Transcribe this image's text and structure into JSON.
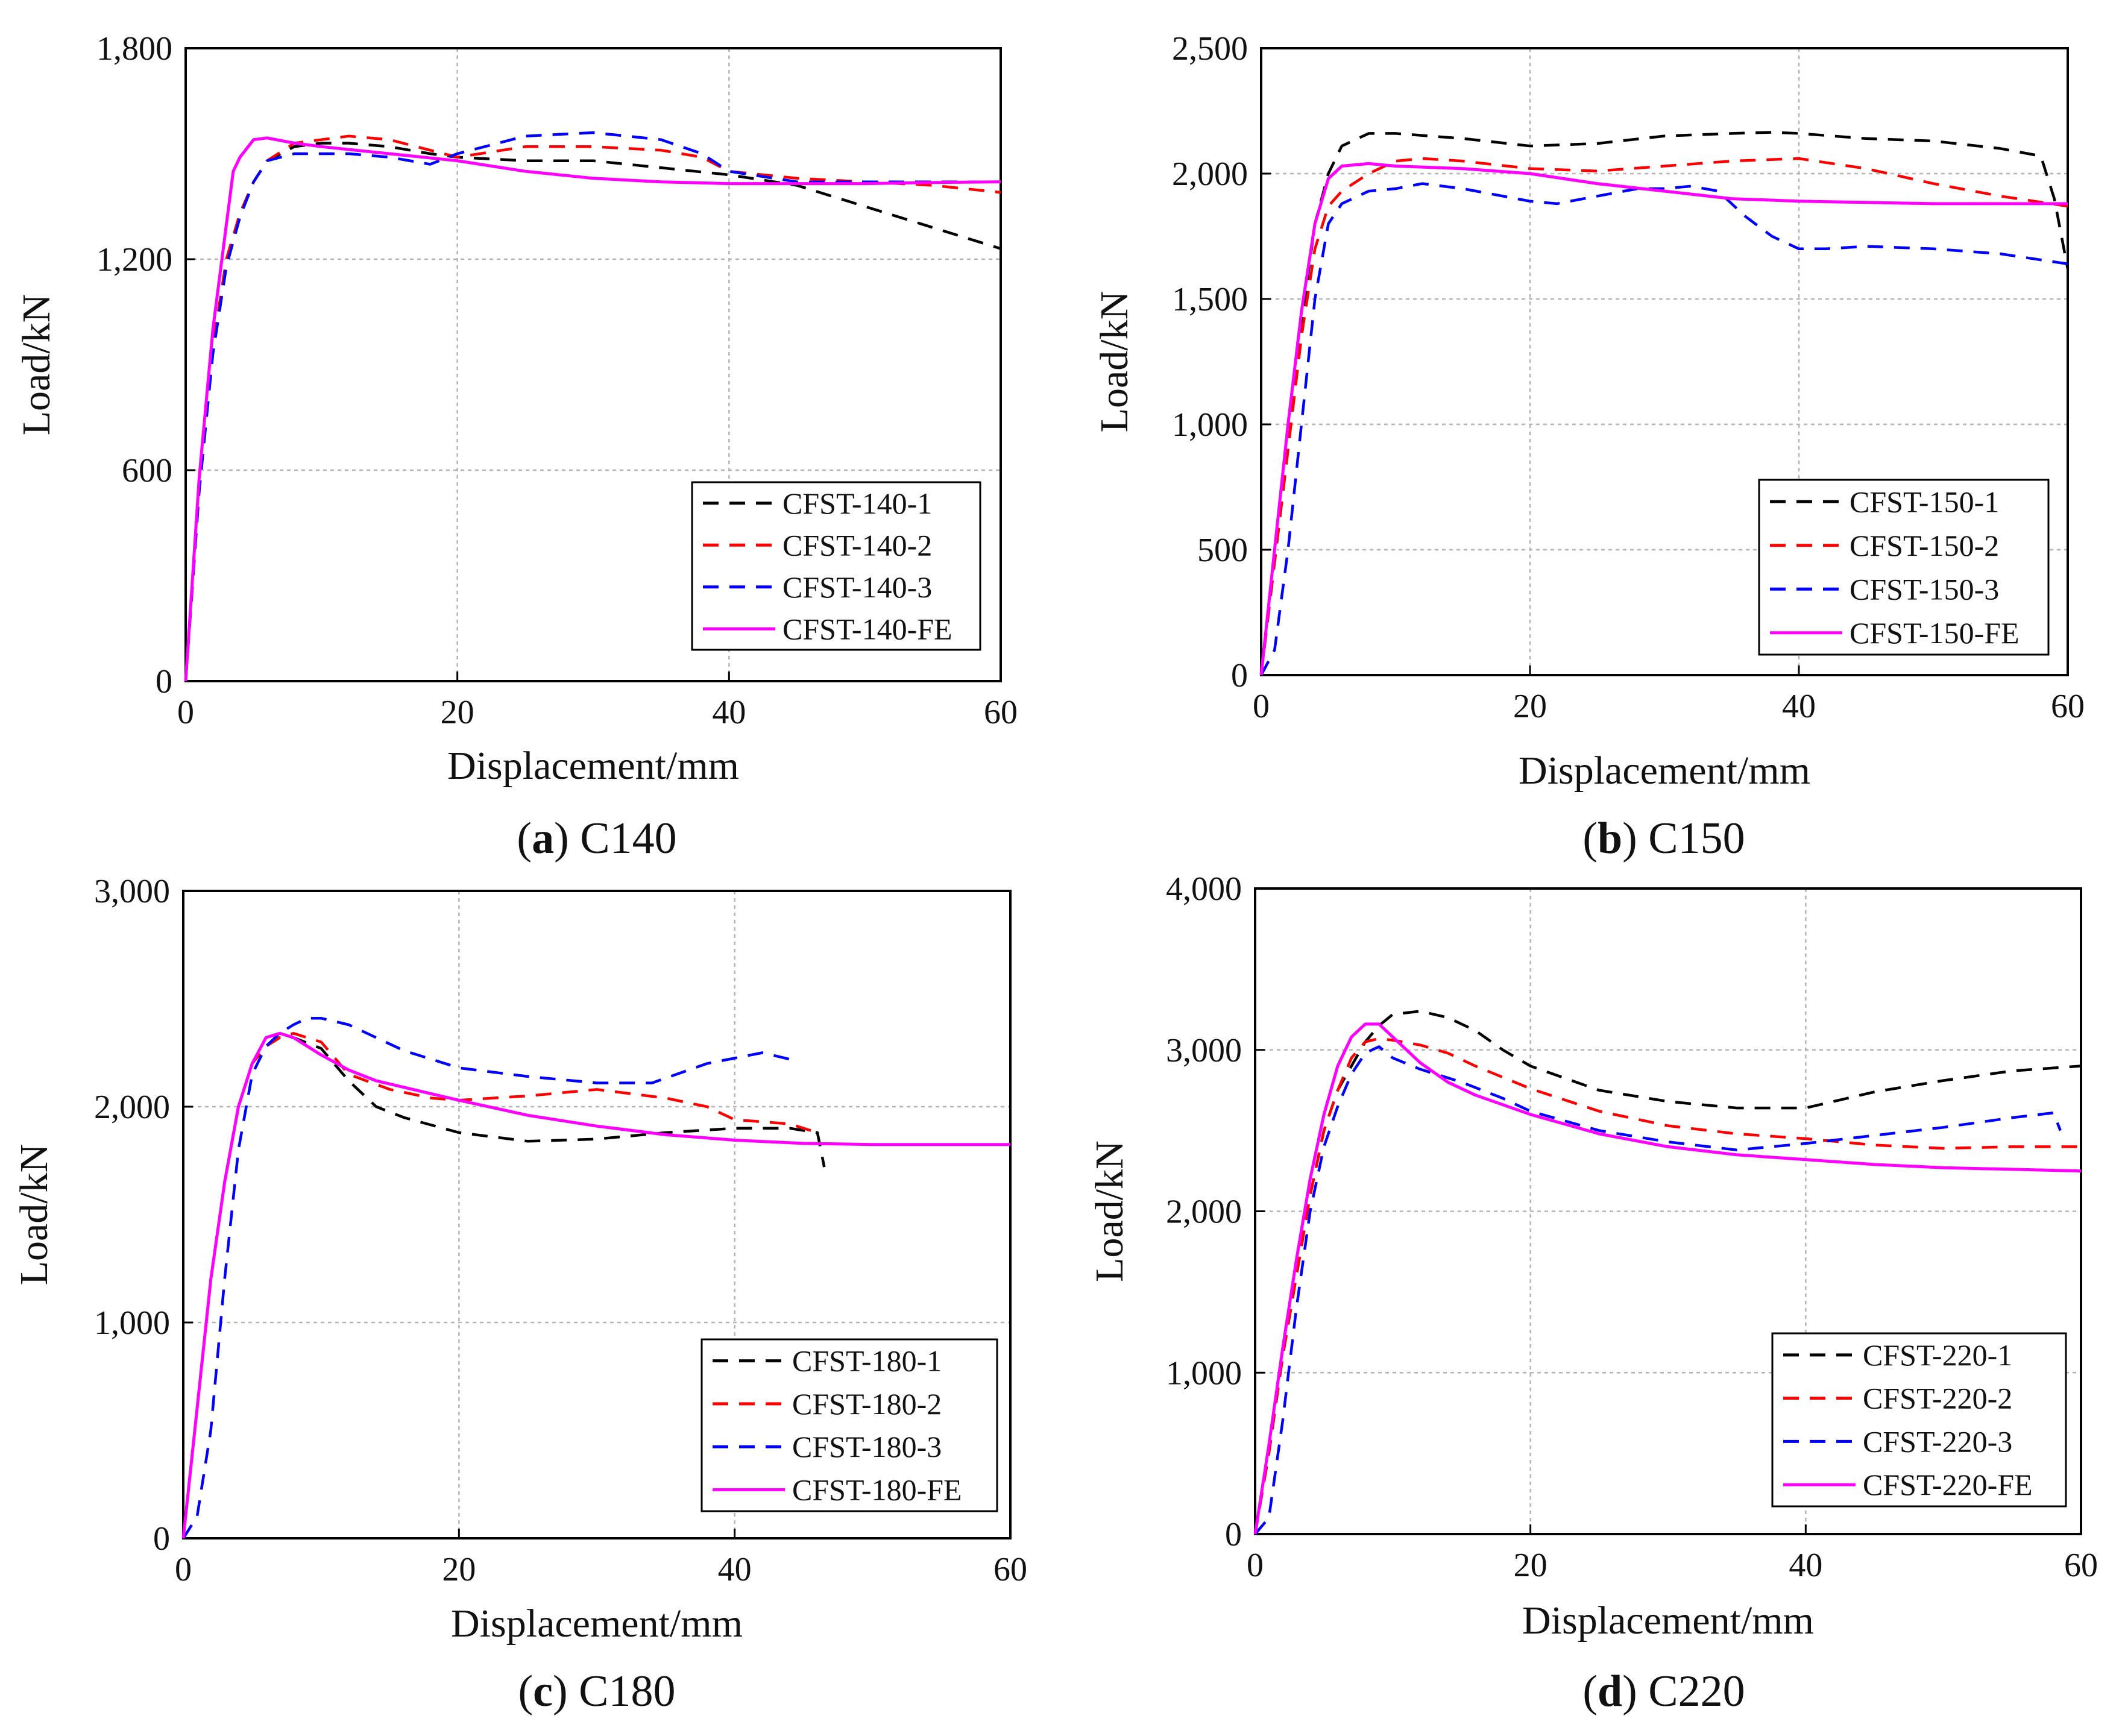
{
  "chart_data": [
    {
      "type": "line",
      "caption": {
        "open": "(",
        "letter": "a",
        "close": ")",
        "text": " C140"
      },
      "xlabel": "Displacement/mm",
      "ylabel": "Load/kN",
      "xlim": [
        0,
        60
      ],
      "ylim": [
        0,
        1800
      ],
      "xticks": [
        0,
        20,
        40,
        60
      ],
      "xtick_labels": [
        "0",
        "20",
        "40",
        "60"
      ],
      "yticks": [
        0,
        600,
        1200,
        1800
      ],
      "ytick_labels": [
        "0",
        "600",
        "1,200",
        "1,800"
      ],
      "grid": true,
      "legend_position": "bottom-right",
      "series": [
        {
          "name": "CFST-140-1",
          "color": "#000000",
          "dash": "dashed",
          "x": [
            0,
            1,
            2,
            3,
            4,
            5,
            6,
            8,
            10,
            12,
            15,
            18,
            20,
            25,
            30,
            35,
            40,
            45,
            50,
            55,
            60
          ],
          "y": [
            0,
            550,
            950,
            1200,
            1330,
            1420,
            1480,
            1520,
            1530,
            1530,
            1520,
            1500,
            1490,
            1480,
            1480,
            1460,
            1440,
            1410,
            1350,
            1290,
            1230
          ]
        },
        {
          "name": "CFST-140-2",
          "color": "#ff0000",
          "dash": "dashed",
          "x": [
            0,
            1,
            2,
            3,
            4,
            5,
            6,
            8,
            10,
            12,
            15,
            18,
            20,
            25,
            30,
            35,
            38,
            40,
            45,
            50,
            55,
            60
          ],
          "y": [
            0,
            550,
            950,
            1200,
            1330,
            1420,
            1480,
            1530,
            1540,
            1550,
            1540,
            1510,
            1490,
            1520,
            1520,
            1510,
            1490,
            1450,
            1430,
            1420,
            1410,
            1390
          ]
        },
        {
          "name": "CFST-140-3",
          "color": "#0000ff",
          "dash": "dashed",
          "x": [
            0,
            1,
            2,
            3,
            4,
            5,
            6,
            8,
            10,
            12,
            15,
            18,
            20,
            25,
            30,
            35,
            38,
            40,
            45,
            50,
            55,
            60
          ],
          "y": [
            0,
            540,
            930,
            1180,
            1320,
            1420,
            1480,
            1500,
            1500,
            1500,
            1490,
            1470,
            1500,
            1550,
            1560,
            1540,
            1500,
            1450,
            1420,
            1420,
            1420,
            1420
          ]
        },
        {
          "name": "CFST-140-FE",
          "color": "#ff00ff",
          "dash": "solid",
          "x": [
            0,
            1,
            2,
            3,
            3.5,
            4,
            5,
            6,
            8,
            10,
            15,
            20,
            25,
            30,
            35,
            40,
            45,
            50,
            55,
            60
          ],
          "y": [
            0,
            580,
            1000,
            1300,
            1450,
            1490,
            1540,
            1545,
            1530,
            1520,
            1500,
            1480,
            1450,
            1430,
            1420,
            1415,
            1415,
            1415,
            1418,
            1420
          ]
        }
      ]
    },
    {
      "type": "line",
      "caption": {
        "open": "(",
        "letter": "b",
        "close": ")",
        "text": " C150"
      },
      "xlabel": "Displacement/mm",
      "ylabel": "Load/kN",
      "xlim": [
        0,
        60
      ],
      "ylim": [
        0,
        2500
      ],
      "xticks": [
        0,
        20,
        40,
        60
      ],
      "xtick_labels": [
        "0",
        "20",
        "40",
        "60"
      ],
      "yticks": [
        0,
        500,
        1000,
        1500,
        2000,
        2500
      ],
      "ytick_labels": [
        "0",
        "500",
        "1,000",
        "1,500",
        "2,000",
        "2,500"
      ],
      "grid": true,
      "legend_position": "bottom-right",
      "series": [
        {
          "name": "CFST-150-1",
          "color": "#000000",
          "dash": "dashed",
          "x": [
            0,
            1,
            2,
            3,
            4,
            5,
            6,
            8,
            10,
            15,
            20,
            25,
            30,
            35,
            38,
            40,
            45,
            50,
            55,
            58,
            59,
            60
          ],
          "y": [
            0,
            450,
            900,
            1400,
            1800,
            2000,
            2110,
            2160,
            2160,
            2140,
            2110,
            2120,
            2150,
            2160,
            2165,
            2160,
            2140,
            2130,
            2100,
            2070,
            1900,
            1620
          ]
        },
        {
          "name": "CFST-150-2",
          "color": "#ff0000",
          "dash": "dashed",
          "x": [
            0,
            1,
            2,
            3,
            4,
            5,
            6,
            8,
            10,
            12,
            15,
            20,
            25,
            30,
            35,
            40,
            45,
            50,
            55,
            60
          ],
          "y": [
            0,
            450,
            900,
            1350,
            1700,
            1870,
            1930,
            2000,
            2050,
            2060,
            2050,
            2020,
            2010,
            2030,
            2050,
            2060,
            2020,
            1960,
            1910,
            1870
          ]
        },
        {
          "name": "CFST-150-3",
          "color": "#0000ff",
          "dash": "dashed",
          "x": [
            0,
            1,
            2,
            3,
            4,
            5,
            6,
            8,
            10,
            12,
            15,
            18,
            20,
            22,
            25,
            28,
            30,
            32,
            34,
            36,
            38,
            40,
            42,
            45,
            50,
            55,
            60
          ],
          "y": [
            0,
            100,
            500,
            1000,
            1500,
            1800,
            1880,
            1930,
            1940,
            1960,
            1940,
            1910,
            1890,
            1880,
            1910,
            1940,
            1940,
            1950,
            1930,
            1830,
            1750,
            1700,
            1700,
            1710,
            1700,
            1680,
            1640
          ]
        },
        {
          "name": "CFST-150-FE",
          "color": "#ff00ff",
          "dash": "solid",
          "x": [
            0,
            1,
            2,
            3,
            4,
            5,
            6,
            8,
            10,
            15,
            20,
            25,
            30,
            35,
            40,
            45,
            50,
            55,
            60
          ],
          "y": [
            0,
            500,
            1000,
            1450,
            1800,
            1980,
            2030,
            2040,
            2030,
            2020,
            2000,
            1960,
            1930,
            1900,
            1890,
            1885,
            1880,
            1880,
            1880
          ]
        }
      ]
    },
    {
      "type": "line",
      "caption": {
        "open": "(",
        "letter": "c",
        "close": ")",
        "text": " C180"
      },
      "xlabel": "Displacement/mm",
      "ylabel": "Load/kN",
      "xlim": [
        0,
        60
      ],
      "ylim": [
        0,
        3000
      ],
      "xticks": [
        0,
        20,
        40,
        60
      ],
      "xtick_labels": [
        "0",
        "20",
        "40",
        "60"
      ],
      "yticks": [
        0,
        1000,
        2000,
        3000
      ],
      "ytick_labels": [
        "0",
        "1,000",
        "2,000",
        "3,000"
      ],
      "grid": true,
      "legend_position": "bottom-right",
      "series": [
        {
          "name": "CFST-180-1",
          "color": "#000000",
          "dash": "dashed",
          "x": [
            0,
            1,
            2,
            3,
            4,
            5,
            6,
            7,
            8,
            10,
            12,
            14,
            16,
            20,
            25,
            30,
            35,
            40,
            44,
            46,
            46.5
          ],
          "y": [
            0,
            600,
            1200,
            1650,
            2000,
            2200,
            2280,
            2320,
            2320,
            2270,
            2120,
            2000,
            1950,
            1880,
            1840,
            1850,
            1880,
            1900,
            1900,
            1880,
            1720
          ]
        },
        {
          "name": "CFST-180-2",
          "color": "#ff0000",
          "dash": "dashed",
          "x": [
            0,
            1,
            2,
            3,
            4,
            5,
            6,
            7,
            8,
            10,
            12,
            15,
            18,
            20,
            25,
            30,
            35,
            38,
            40,
            44,
            46
          ],
          "y": [
            0,
            600,
            1200,
            1650,
            2000,
            2200,
            2280,
            2320,
            2340,
            2300,
            2150,
            2080,
            2040,
            2030,
            2050,
            2080,
            2040,
            2000,
            1940,
            1920,
            1880
          ]
        },
        {
          "name": "CFST-180-3",
          "color": "#0000ff",
          "dash": "dashed",
          "x": [
            0,
            1,
            2,
            3,
            4,
            5,
            6,
            7,
            8,
            9,
            10,
            12,
            14,
            16,
            20,
            25,
            30,
            34,
            38,
            42,
            44
          ],
          "y": [
            0,
            100,
            500,
            1200,
            1800,
            2150,
            2280,
            2340,
            2380,
            2410,
            2410,
            2380,
            2320,
            2260,
            2180,
            2140,
            2110,
            2110,
            2200,
            2250,
            2220
          ]
        },
        {
          "name": "CFST-180-FE",
          "color": "#ff00ff",
          "dash": "solid",
          "x": [
            0,
            1,
            2,
            3,
            4,
            5,
            6,
            7,
            8,
            10,
            12,
            14,
            16,
            20,
            25,
            30,
            35,
            40,
            45,
            50,
            55,
            60
          ],
          "y": [
            0,
            600,
            1200,
            1650,
            2000,
            2200,
            2320,
            2340,
            2320,
            2240,
            2170,
            2120,
            2090,
            2030,
            1960,
            1910,
            1870,
            1845,
            1830,
            1825,
            1825,
            1825
          ]
        }
      ]
    },
    {
      "type": "line",
      "caption": {
        "open": "(",
        "letter": "d",
        "close": ")",
        "text": " C220"
      },
      "xlabel": "Displacement/mm",
      "ylabel": "Load/kN",
      "xlim": [
        0,
        60
      ],
      "ylim": [
        0,
        4000
      ],
      "xticks": [
        0,
        20,
        40,
        60
      ],
      "xtick_labels": [
        "0",
        "20",
        "40",
        "60"
      ],
      "yticks": [
        0,
        1000,
        2000,
        3000,
        4000
      ],
      "ytick_labels": [
        "0",
        "1,000",
        "2,000",
        "3,000",
        "4,000"
      ],
      "grid": true,
      "legend_position": "bottom-right",
      "series": [
        {
          "name": "CFST-220-1",
          "color": "#000000",
          "dash": "dashed",
          "x": [
            0,
            1,
            2,
            3,
            4,
            5,
            6,
            7,
            8,
            9,
            10,
            12,
            14,
            16,
            18,
            20,
            25,
            30,
            35,
            40,
            45,
            50,
            55,
            60
          ],
          "y": [
            0,
            500,
            1100,
            1600,
            2100,
            2500,
            2750,
            2900,
            3050,
            3150,
            3220,
            3240,
            3200,
            3120,
            3000,
            2900,
            2750,
            2680,
            2640,
            2640,
            2740,
            2810,
            2870,
            2900
          ]
        },
        {
          "name": "CFST-220-2",
          "color": "#ff0000",
          "dash": "dashed",
          "x": [
            0,
            1,
            2,
            3,
            4,
            5,
            6,
            7,
            8,
            9,
            10,
            12,
            14,
            16,
            20,
            25,
            30,
            35,
            40,
            45,
            50,
            55,
            60
          ],
          "y": [
            0,
            500,
            1100,
            1600,
            2100,
            2500,
            2750,
            2950,
            3050,
            3070,
            3060,
            3030,
            2980,
            2900,
            2760,
            2620,
            2530,
            2480,
            2450,
            2410,
            2390,
            2400,
            2400
          ]
        },
        {
          "name": "CFST-220-3",
          "color": "#0000ff",
          "dash": "dashed",
          "x": [
            0,
            1,
            2,
            3,
            4,
            5,
            6,
            7,
            8,
            9,
            10,
            12,
            15,
            18,
            20,
            25,
            30,
            35,
            40,
            45,
            50,
            55,
            58,
            58.5
          ],
          "y": [
            0,
            100,
            700,
            1400,
            2000,
            2400,
            2650,
            2850,
            2980,
            3020,
            2950,
            2880,
            2800,
            2700,
            2620,
            2500,
            2430,
            2380,
            2420,
            2470,
            2520,
            2580,
            2610,
            2500
          ]
        },
        {
          "name": "CFST-220-FE",
          "color": "#ff00ff",
          "dash": "solid",
          "x": [
            0,
            1,
            2,
            3,
            4,
            5,
            6,
            7,
            8,
            9,
            10,
            12,
            14,
            16,
            20,
            25,
            30,
            35,
            40,
            45,
            50,
            55,
            60
          ],
          "y": [
            0,
            550,
            1150,
            1700,
            2200,
            2600,
            2900,
            3080,
            3160,
            3160,
            3080,
            2920,
            2800,
            2720,
            2600,
            2480,
            2400,
            2350,
            2320,
            2290,
            2270,
            2260,
            2250
          ]
        }
      ]
    }
  ]
}
